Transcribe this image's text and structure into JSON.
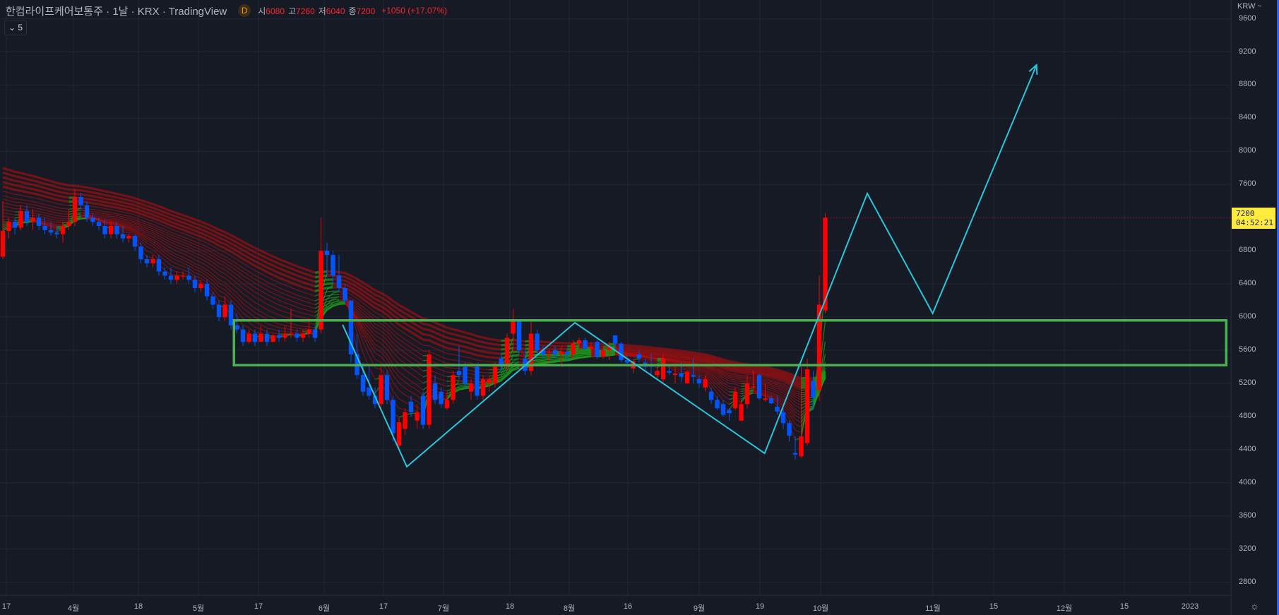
{
  "header": {
    "title": "한컴라이프케어보통주 · 1날 · KRX · TradingView",
    "badge": "D",
    "open_label": "시",
    "open": "6080",
    "high_label": "고",
    "high": "7260",
    "low_label": "저",
    "low": "6040",
    "close_label": "종",
    "close": "7200",
    "change": "+1050 (+17.07%)"
  },
  "collapse_button": "5",
  "currency": "KRW ~",
  "current_price": {
    "price": "7200",
    "countdown": "04:52:21",
    "color": "#ffeb3b"
  },
  "colors": {
    "background": "#161a25",
    "up": "#ff0000",
    "down": "#0055ff",
    "box": "#4caf50",
    "pattern_line": "#26c6da"
  },
  "chart_data": {
    "type": "candlestick",
    "ylim": [
      2600,
      9700
    ],
    "y_ticks": [
      "9600",
      "9200",
      "8800",
      "8400",
      "8000",
      "7600",
      "6800",
      "6400",
      "6000",
      "5600",
      "5200",
      "4800",
      "4400",
      "4000",
      "3600",
      "3200",
      "2800"
    ],
    "x_ticks": [
      "17",
      "4월",
      "18",
      "5월",
      "17",
      "6월",
      "17",
      "7월",
      "18",
      "8월",
      "16",
      "9월",
      "19",
      "10월",
      "11월",
      "15",
      "12월",
      "15",
      "2023"
    ],
    "grid": true,
    "ohlc": [
      [
        6730,
        7400,
        6700,
        7040
      ],
      [
        7040,
        7200,
        6950,
        7150
      ],
      [
        7150,
        7200,
        7000,
        7080
      ],
      [
        7080,
        7350,
        7050,
        7280
      ],
      [
        7280,
        7350,
        7100,
        7150
      ],
      [
        7150,
        7300,
        7050,
        7200
      ],
      [
        7200,
        7250,
        7050,
        7100
      ],
      [
        7100,
        7200,
        7000,
        7050
      ],
      [
        7050,
        7150,
        6980,
        7020
      ],
      [
        7020,
        7100,
        6950,
        7000
      ],
      [
        7000,
        7150,
        6900,
        7100
      ],
      [
        7100,
        7300,
        7050,
        7150
      ],
      [
        7150,
        7550,
        7100,
        7450
      ],
      [
        7450,
        7500,
        7300,
        7350
      ],
      [
        7350,
        7400,
        7150,
        7200
      ],
      [
        7200,
        7250,
        7100,
        7150
      ],
      [
        7150,
        7200,
        7050,
        7100
      ],
      [
        7100,
        7180,
        6950,
        7000
      ],
      [
        7000,
        7150,
        6950,
        7100
      ],
      [
        7100,
        7150,
        6950,
        7000
      ],
      [
        7000,
        7100,
        6900,
        6950
      ],
      [
        6950,
        7000,
        6900,
        6980
      ],
      [
        6980,
        7000,
        6800,
        6850
      ],
      [
        6850,
        6900,
        6650,
        6700
      ],
      [
        6700,
        6750,
        6600,
        6650
      ],
      [
        6650,
        6750,
        6600,
        6700
      ],
      [
        6700,
        6750,
        6500,
        6550
      ],
      [
        6550,
        6600,
        6450,
        6500
      ],
      [
        6500,
        6600,
        6400,
        6450
      ],
      [
        6450,
        6550,
        6400,
        6500
      ],
      [
        6500,
        6550,
        6450,
        6500
      ],
      [
        6500,
        6600,
        6400,
        6450
      ],
      [
        6450,
        6500,
        6300,
        6350
      ],
      [
        6350,
        6450,
        6300,
        6400
      ],
      [
        6400,
        6450,
        6200,
        6250
      ],
      [
        6250,
        6300,
        6100,
        6150
      ],
      [
        6150,
        6200,
        5950,
        6000
      ],
      [
        6000,
        6250,
        5950,
        6150
      ],
      [
        6150,
        6200,
        5850,
        5900
      ],
      [
        5900,
        6050,
        5800,
        5850
      ],
      [
        5850,
        5900,
        5650,
        5700
      ],
      [
        5700,
        5850,
        5680,
        5800
      ],
      [
        5800,
        5850,
        5650,
        5700
      ],
      [
        5700,
        5900,
        5700,
        5800
      ],
      [
        5800,
        5850,
        5650,
        5700
      ],
      [
        5700,
        5800,
        5700,
        5780
      ],
      [
        5780,
        5850,
        5700,
        5750
      ],
      [
        5750,
        5900,
        5700,
        5800
      ],
      [
        5800,
        6100,
        5750,
        5800
      ],
      [
        5800,
        5850,
        5700,
        5750
      ],
      [
        5750,
        5850,
        5700,
        5800
      ],
      [
        5800,
        5950,
        5750,
        5850
      ],
      [
        5850,
        5900,
        5700,
        5750
      ],
      [
        5850,
        7200,
        5800,
        6800
      ],
      [
        6800,
        6900,
        6500,
        6750
      ],
      [
        6750,
        6800,
        6400,
        6500
      ],
      [
        6500,
        6750,
        6300,
        6350
      ],
      [
        6350,
        6400,
        6150,
        6200
      ],
      [
        6200,
        6200,
        5450,
        5550
      ],
      [
        5550,
        5800,
        5250,
        5300
      ],
      [
        5300,
        5450,
        5050,
        5100
      ],
      [
        5150,
        5400,
        5000,
        5050
      ],
      [
        5050,
        5150,
        4900,
        4950
      ],
      [
        4950,
        5400,
        4900,
        5300
      ],
      [
        5300,
        5350,
        4950,
        5000
      ],
      [
        5000,
        5050,
        4500,
        4600
      ],
      [
        4450,
        4780,
        4400,
        4730
      ],
      [
        4650,
        4900,
        4580,
        4850
      ],
      [
        4980,
        5050,
        4800,
        4850
      ],
      [
        4750,
        4950,
        4650,
        4850
      ],
      [
        5050,
        5100,
        4650,
        4700
      ],
      [
        4700,
        5600,
        4650,
        5550
      ],
      [
        5200,
        5300,
        4950,
        5000
      ],
      [
        5100,
        5150,
        4900,
        4950
      ],
      [
        4900,
        5100,
        4880,
        5000
      ],
      [
        5000,
        5350,
        4950,
        5300
      ],
      [
        5350,
        5650,
        5250,
        5300
      ],
      [
        5400,
        5450,
        5150,
        5200
      ],
      [
        5100,
        5250,
        5000,
        5200
      ],
      [
        5400,
        5450,
        5000,
        5050
      ],
      [
        5050,
        5300,
        5000,
        5250
      ],
      [
        5200,
        5300,
        5100,
        5250
      ],
      [
        5200,
        5450,
        5150,
        5400
      ],
      [
        5500,
        5550,
        5350,
        5400
      ],
      [
        5400,
        5800,
        5350,
        5750
      ],
      [
        5800,
        6100,
        5550,
        5950
      ],
      [
        5950,
        5950,
        5550,
        5600
      ],
      [
        5500,
        5600,
        5300,
        5350
      ],
      [
        5350,
        5950,
        5300,
        5800
      ],
      [
        5800,
        5850,
        5550,
        5600
      ],
      [
        5600,
        5650,
        5500,
        5550
      ],
      [
        5550,
        5600,
        5450,
        5550
      ],
      [
        5600,
        5650,
        5500,
        5550
      ],
      [
        5550,
        5650,
        5400,
        5580
      ],
      [
        5580,
        5620,
        5480,
        5550
      ],
      [
        5550,
        5720,
        5500,
        5680
      ],
      [
        5680,
        5750,
        5580,
        5720
      ],
      [
        5720,
        5750,
        5600,
        5620
      ],
      [
        5620,
        5700,
        5550,
        5640
      ],
      [
        5700,
        5720,
        5500,
        5520
      ],
      [
        5520,
        5650,
        5500,
        5600
      ],
      [
        5600,
        5700,
        5480,
        5650
      ],
      [
        5780,
        5780,
        5600,
        5680
      ],
      [
        5680,
        5700,
        5450,
        5480
      ],
      [
        5480,
        5550,
        5400,
        5450
      ],
      [
        5380,
        5480,
        5320,
        5470
      ],
      [
        5550,
        5600,
        5450,
        5500
      ],
      [
        5450,
        5500,
        5350,
        5400
      ],
      [
        5420,
        5550,
        5300,
        5400
      ],
      [
        5300,
        5400,
        5250,
        5350
      ],
      [
        5250,
        5550,
        5200,
        5500
      ],
      [
        5350,
        5400,
        5300,
        5330
      ],
      [
        5300,
        5400,
        5200,
        5320
      ],
      [
        5320,
        5450,
        5220,
        5280
      ],
      [
        5200,
        5350,
        5200,
        5340
      ],
      [
        5300,
        5500,
        5200,
        5280
      ],
      [
        5250,
        5300,
        5150,
        5200
      ],
      [
        5150,
        5300,
        5100,
        5250
      ],
      [
        5100,
        5150,
        4950,
        5000
      ],
      [
        5000,
        5050,
        4880,
        4900
      ],
      [
        4950,
        5000,
        4800,
        4820
      ],
      [
        4880,
        4900,
        4750,
        4840
      ],
      [
        4900,
        5150,
        4880,
        5100
      ],
      [
        4750,
        5000,
        4740,
        4950
      ],
      [
        4950,
        5300,
        4900,
        5200
      ],
      [
        5150,
        5350,
        5100,
        5160
      ],
      [
        5300,
        5320,
        5000,
        5020
      ],
      [
        5000,
        5200,
        4980,
        5020
      ],
      [
        5020,
        5050,
        4950,
        4960
      ],
      [
        4920,
        5050,
        4820,
        4860
      ],
      [
        4850,
        4900,
        4650,
        4720
      ],
      [
        4720,
        4750,
        4500,
        4570
      ],
      [
        4360,
        4560,
        4280,
        4340
      ],
      [
        4320,
        5400,
        4300,
        4560
      ],
      [
        4480,
        5500,
        4450,
        5370
      ],
      [
        5230,
        5350,
        4880,
        5030
      ],
      [
        5120,
        6500,
        4990,
        6150
      ],
      [
        6080,
        7260,
        6040,
        7200
      ]
    ],
    "annotations": {
      "box": {
        "price_top": 5960,
        "price_bottom": 5420,
        "bar_start": 38.5,
        "bar_end": 203.8
      },
      "pattern_path": [
        [
          56.6,
          5907
        ],
        [
          67.3,
          4194
        ],
        [
          95.3,
          5932
        ],
        [
          126.9,
          4356
        ],
        [
          144,
          7492
        ],
        [
          154.9,
          6044
        ],
        [
          172.2,
          9043
        ]
      ],
      "arrow_end": true
    }
  }
}
